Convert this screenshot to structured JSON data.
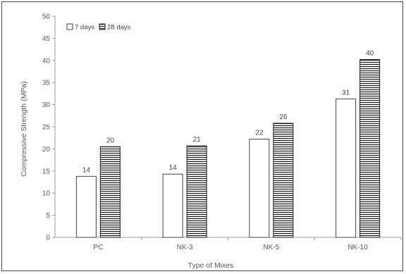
{
  "chart_data": {
    "type": "bar",
    "title": "",
    "xlabel": "Type of Mixes",
    "ylabel": "Compressive Strength (MPa)",
    "categories": [
      "PC",
      "NK-3",
      "NK-5",
      "NK-10"
    ],
    "ylim": [
      0,
      50
    ],
    "yticks": [
      0,
      5,
      10,
      15,
      20,
      25,
      30,
      35,
      40,
      45,
      50
    ],
    "grid": false,
    "legend_position": "top-left",
    "series": [
      {
        "name": "7 days",
        "values": [
          13.8,
          14.3,
          22.2,
          31.3
        ],
        "data_labels": [
          "14",
          "14",
          "22",
          "31"
        ],
        "fill": "#ffffff",
        "pattern": "none",
        "stroke": "#404040"
      },
      {
        "name": "28 days",
        "values": [
          20.5,
          20.7,
          25.8,
          40.2
        ],
        "data_labels": [
          "20",
          "21",
          "26",
          "40"
        ],
        "fill": "#ffffff",
        "pattern": "horizontal-lines",
        "stroke": "#1a1a1a"
      }
    ]
  }
}
